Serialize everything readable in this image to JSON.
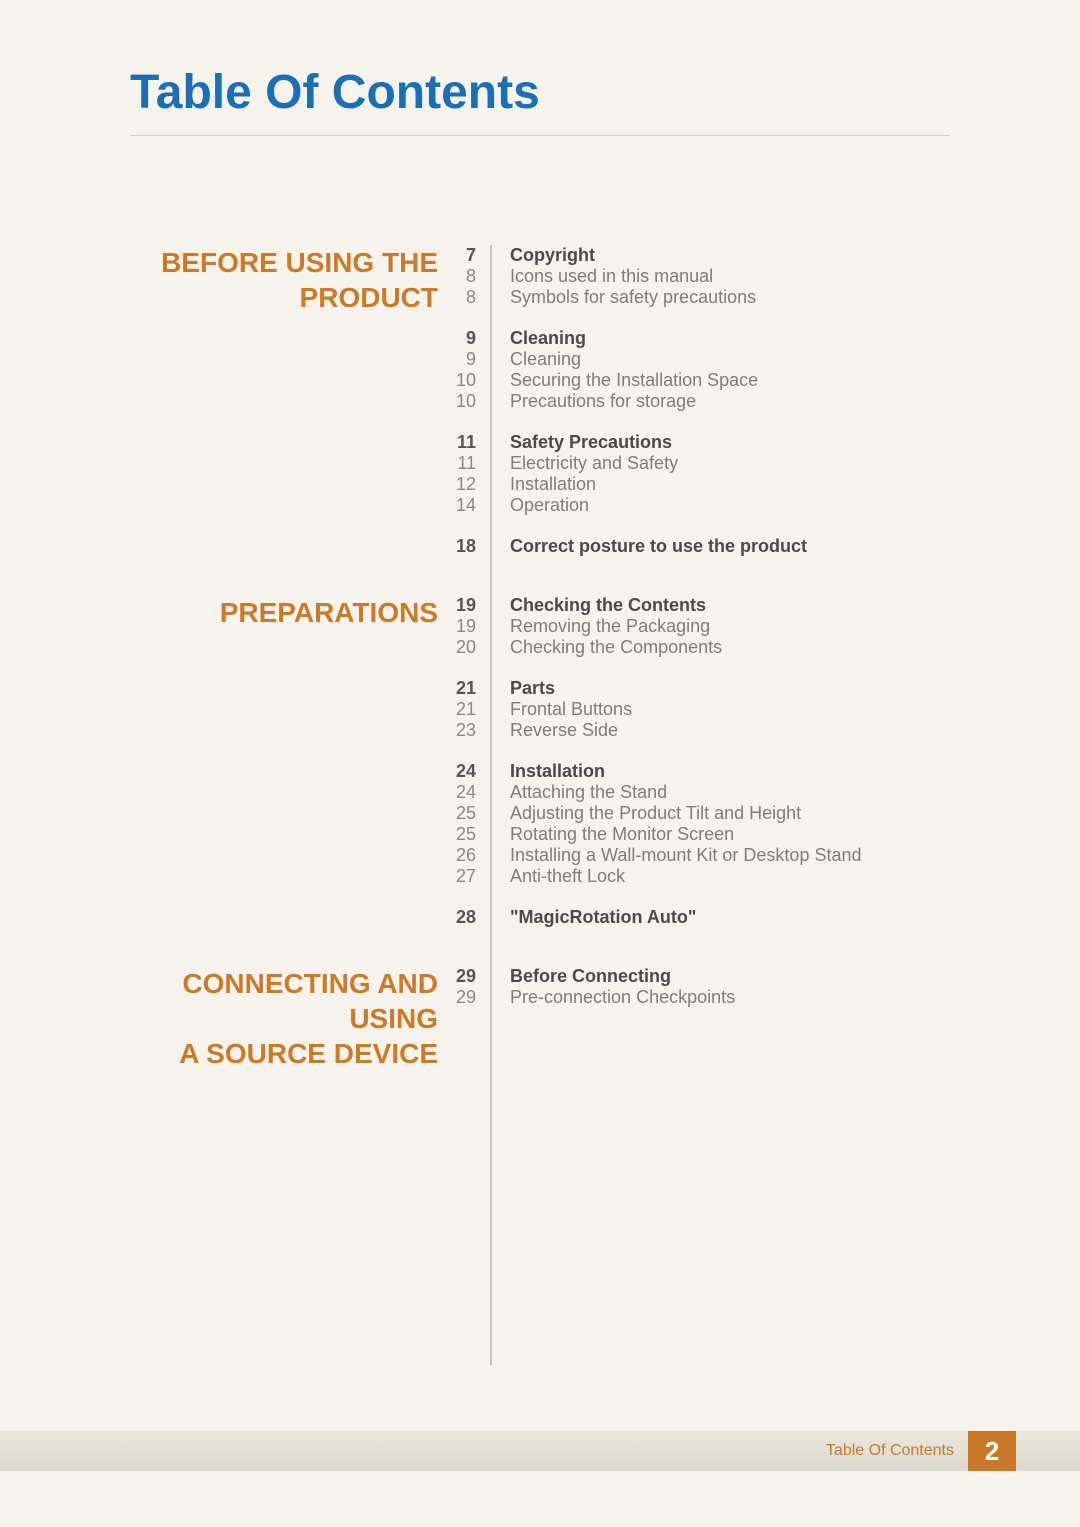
{
  "page_title": "Table Of Contents",
  "colors": {
    "background": "#f5f3ec",
    "title_blue": "#1b6fb5",
    "section_orange": "#cb7a29",
    "text_bold": "#4a4a4a",
    "text_norm": "#7f7d75",
    "page_bold": "#555555",
    "page_norm": "#8a8880",
    "divider": "#c7c4b9",
    "underline": "#d0cdc2",
    "footer_grad_top": "#e9e6dc",
    "footer_grad_bot": "#ddd9cc",
    "footer_box": "#c87928"
  },
  "typography": {
    "title_fontsize": 48,
    "section_fontsize": 28,
    "item_fontsize": 18,
    "footer_label_fontsize": 16,
    "footer_page_fontsize": 26
  },
  "sections": [
    {
      "title_line1": "BEFORE USING THE",
      "title_line2": "PRODUCT",
      "groups": [
        {
          "rows": [
            {
              "page": "7",
              "label": "Copyright",
              "bold": true
            },
            {
              "page": "8",
              "label": "Icons used in this manual",
              "bold": false
            },
            {
              "page": "8",
              "label": "Symbols for safety precautions",
              "bold": false
            }
          ]
        },
        {
          "rows": [
            {
              "page": "9",
              "label": "Cleaning",
              "bold": true
            },
            {
              "page": "9",
              "label": "Cleaning",
              "bold": false
            },
            {
              "page": "10",
              "label": "Securing the Installation Space",
              "bold": false
            },
            {
              "page": "10",
              "label": "Precautions for storage",
              "bold": false
            }
          ]
        },
        {
          "rows": [
            {
              "page": "11",
              "label": "Safety Precautions",
              "bold": true
            },
            {
              "page": "11",
              "label": "Electricity and Safety",
              "bold": false
            },
            {
              "page": "12",
              "label": "Installation",
              "bold": false
            },
            {
              "page": "14",
              "label": "Operation",
              "bold": false
            }
          ]
        },
        {
          "rows": [
            {
              "page": "18",
              "label": "Correct posture to use the product",
              "bold": true
            }
          ]
        }
      ]
    },
    {
      "title_line1": "PREPARATIONS",
      "title_line2": "",
      "groups": [
        {
          "rows": [
            {
              "page": "19",
              "label": "Checking the Contents",
              "bold": true
            },
            {
              "page": "19",
              "label": "Removing the Packaging",
              "bold": false
            },
            {
              "page": "20",
              "label": "Checking the Components",
              "bold": false
            }
          ]
        },
        {
          "rows": [
            {
              "page": "21",
              "label": "Parts",
              "bold": true
            },
            {
              "page": "21",
              "label": "Frontal Buttons",
              "bold": false
            },
            {
              "page": "23",
              "label": "Reverse Side",
              "bold": false
            }
          ]
        },
        {
          "rows": [
            {
              "page": "24",
              "label": "Installation",
              "bold": true
            },
            {
              "page": "24",
              "label": "Attaching the Stand",
              "bold": false
            },
            {
              "page": "25",
              "label": "Adjusting the Product Tilt and Height",
              "bold": false
            },
            {
              "page": "25",
              "label": "Rotating the Monitor Screen",
              "bold": false
            },
            {
              "page": "26",
              "label": "Installing a Wall-mount Kit or Desktop Stand",
              "bold": false
            },
            {
              "page": "27",
              "label": "Anti-theft Lock",
              "bold": false
            }
          ]
        },
        {
          "rows": [
            {
              "page": "28",
              "label": "\"MagicRotation Auto\"",
              "bold": true
            }
          ]
        }
      ]
    },
    {
      "title_line1": "CONNECTING AND USING",
      "title_line2": "A SOURCE DEVICE",
      "groups": [
        {
          "rows": [
            {
              "page": "29",
              "label": "Before Connecting",
              "bold": true
            },
            {
              "page": "29",
              "label": "Pre-connection Checkpoints",
              "bold": false
            }
          ]
        }
      ]
    }
  ],
  "footer": {
    "label": "Table Of Contents",
    "page_number": "2"
  }
}
